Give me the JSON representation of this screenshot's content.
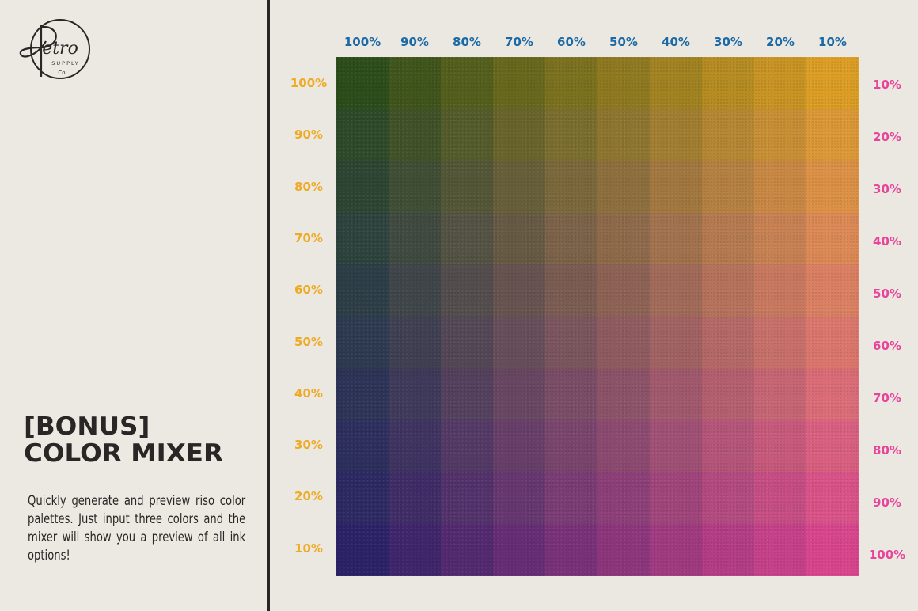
{
  "brand": {
    "logo_text": "Retro",
    "logo_sub": "SUPPLY",
    "logo_co": "Co"
  },
  "heading": {
    "line1": "[BONUS]",
    "line2": "COLOR MIXER"
  },
  "description": "Quickly generate and preview riso color palettes. Just input three colors and the mixer will show you a preview of all ink options!",
  "inks": {
    "blue": "#2f74b4",
    "yellow": "#f2b628",
    "pink": "#ee4ca6",
    "paper": "#ebe8e2"
  },
  "label_colors": {
    "top": "#1b6aa6",
    "left": "#eeaa22",
    "right": "#e8449a"
  },
  "mixer": {
    "top_labels": [
      "100%",
      "90%",
      "80%",
      "70%",
      "60%",
      "50%",
      "40%",
      "30%",
      "20%",
      "10%"
    ],
    "left_labels": [
      "100%",
      "90%",
      "80%",
      "70%",
      "60%",
      "50%",
      "40%",
      "30%",
      "20%",
      "10%"
    ],
    "right_labels": [
      "10%",
      "20%",
      "30%",
      "40%",
      "50%",
      "60%",
      "70%",
      "80%",
      "90%",
      "100%"
    ],
    "blue_pct": [
      100,
      90,
      80,
      70,
      60,
      50,
      40,
      30,
      20,
      10
    ],
    "yellow_pct": [
      100,
      90,
      80,
      70,
      60,
      50,
      40,
      30,
      20,
      10
    ],
    "pink_pct": [
      10,
      20,
      30,
      40,
      50,
      60,
      70,
      80,
      90,
      100
    ]
  }
}
